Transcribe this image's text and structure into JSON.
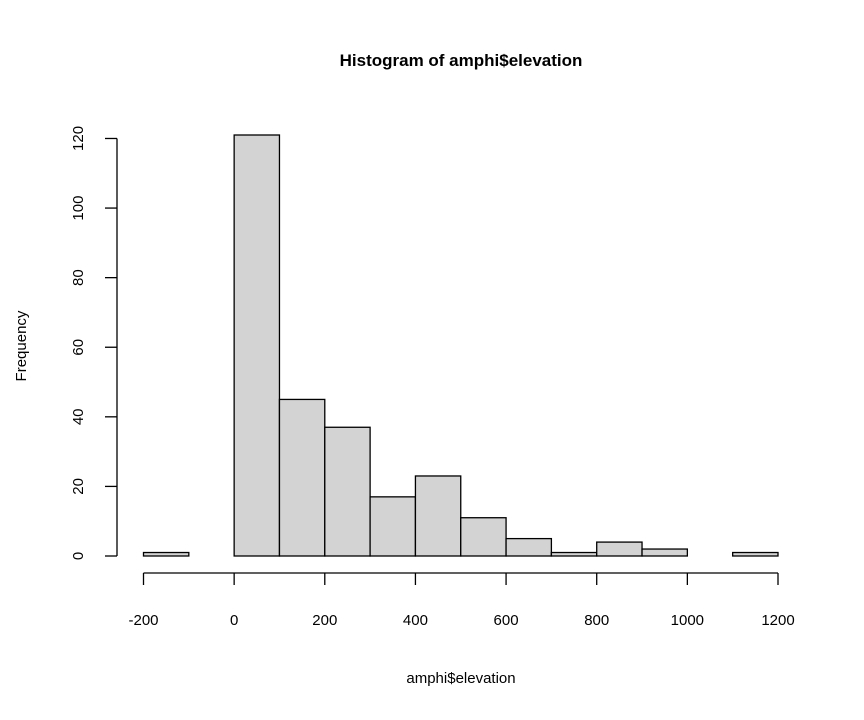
{
  "chart_data": {
    "type": "bar",
    "title": "Histogram of amphi$elevation",
    "xlabel": "amphi$elevation",
    "ylabel": "Frequency",
    "bin_edges": [
      -200,
      -100,
      0,
      100,
      200,
      300,
      400,
      500,
      600,
      700,
      800,
      900,
      1000,
      1100,
      1200
    ],
    "counts": [
      1,
      0,
      121,
      45,
      37,
      17,
      23,
      11,
      5,
      1,
      4,
      2,
      0,
      1
    ],
    "xlim": [
      -200,
      1200
    ],
    "ylim": [
      0,
      121
    ],
    "x_ticks": [
      -200,
      0,
      200,
      400,
      600,
      800,
      1000,
      1200
    ],
    "x_tick_labels": [
      "-200",
      "0",
      "200",
      "400",
      "600",
      "800",
      "1000",
      "1200"
    ],
    "y_ticks": [
      0,
      20,
      40,
      60,
      80,
      100,
      120
    ],
    "y_tick_labels": [
      "0",
      "20",
      "40",
      "60",
      "80",
      "100",
      "120"
    ],
    "grid": false,
    "legend": "none",
    "bar_color": "#d3d3d3",
    "edge_color": "#000000"
  }
}
